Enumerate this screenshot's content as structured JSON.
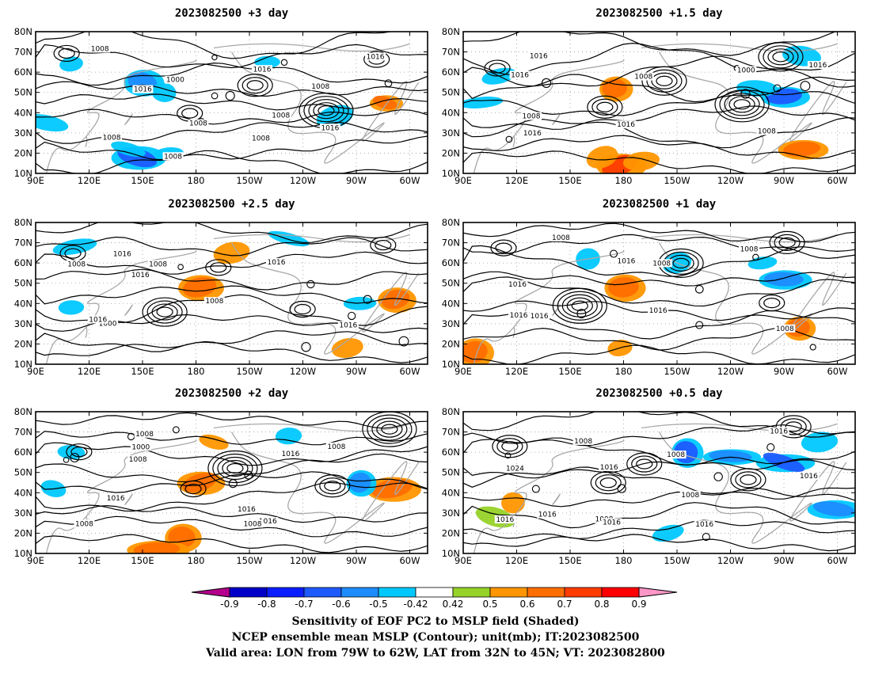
{
  "chart_data": [
    {
      "type": "heatmap",
      "title": "2023082500 +3 day",
      "x_ticks": [
        "90E",
        "120E",
        "150E",
        "180",
        "150W",
        "120W",
        "90W",
        "60W"
      ],
      "y_ticks": [
        "10N",
        "20N",
        "30N",
        "40N",
        "50N",
        "60N",
        "70N",
        "80N"
      ],
      "contour_labels": [
        "1008",
        "1008",
        "1016",
        "1008",
        "1016",
        "1008",
        "1000",
        "1016",
        "1016",
        "1008",
        "1008",
        "1008"
      ],
      "patches": [
        {
          "lon": 147,
          "lat": 18,
          "value": -0.7
        },
        {
          "lon": 142,
          "lat": 22,
          "value": -0.5
        },
        {
          "lon": 165,
          "lat": 20,
          "value": -0.45
        },
        {
          "lon": 150,
          "lat": 55,
          "value": -0.6
        },
        {
          "lon": 162,
          "lat": 50,
          "value": -0.5
        },
        {
          "lon": 110,
          "lat": 64,
          "value": -0.5
        },
        {
          "lon": 258,
          "lat": 38,
          "value": -0.45
        },
        {
          "lon": 220,
          "lat": 65,
          "value": -0.5
        },
        {
          "lon": 286,
          "lat": 45,
          "value": 0.6
        },
        {
          "lon": 96,
          "lat": 35,
          "value": -0.45
        }
      ]
    },
    {
      "type": "heatmap",
      "title": "2023082500 +1.5 day",
      "x_ticks": [
        "90E",
        "120E",
        "150E",
        "180",
        "150W",
        "120W",
        "90W",
        "60W"
      ],
      "y_ticks": [
        "10N",
        "20N",
        "30N",
        "40N",
        "50N",
        "60N",
        "70N",
        "80N"
      ],
      "contour_labels": [
        "1016",
        "1016",
        "1016",
        "1008",
        "1000",
        "1016",
        "1008",
        "1008",
        "1016"
      ],
      "patches": [
        {
          "lon": 178,
          "lat": 14,
          "value": 0.7
        },
        {
          "lon": 168,
          "lat": 18,
          "value": 0.55
        },
        {
          "lon": 190,
          "lat": 16,
          "value": 0.5
        },
        {
          "lon": 270,
          "lat": 48,
          "value": -0.7
        },
        {
          "lon": 255,
          "lat": 52,
          "value": -0.5
        },
        {
          "lon": 280,
          "lat": 22,
          "value": 0.6
        },
        {
          "lon": 110,
          "lat": 58,
          "value": -0.5
        },
        {
          "lon": 100,
          "lat": 45,
          "value": -0.5
        },
        {
          "lon": 175,
          "lat": 52,
          "value": 0.6
        },
        {
          "lon": 280,
          "lat": 68,
          "value": -0.5
        }
      ]
    },
    {
      "type": "heatmap",
      "title": "2023082500 +2.5 day",
      "x_ticks": [
        "90E",
        "120E",
        "150E",
        "180",
        "150W",
        "120W",
        "90W",
        "60W"
      ],
      "y_ticks": [
        "10N",
        "20N",
        "30N",
        "40N",
        "50N",
        "60N",
        "70N",
        "80N"
      ],
      "contour_labels": [
        "1016",
        "1008",
        "1008",
        "1000",
        "1016",
        "1016",
        "1008",
        "1016",
        "1016"
      ],
      "patches": [
        {
          "lon": 182,
          "lat": 48,
          "value": 0.6
        },
        {
          "lon": 292,
          "lat": 42,
          "value": 0.65
        },
        {
          "lon": 112,
          "lat": 68,
          "value": -0.5
        },
        {
          "lon": 232,
          "lat": 72,
          "value": -0.5
        },
        {
          "lon": 272,
          "lat": 40,
          "value": -0.5
        },
        {
          "lon": 110,
          "lat": 38,
          "value": -0.45
        },
        {
          "lon": 265,
          "lat": 18,
          "value": 0.5
        },
        {
          "lon": 200,
          "lat": 65,
          "value": 0.55
        }
      ]
    },
    {
      "type": "heatmap",
      "title": "2023082500 +1 day",
      "x_ticks": [
        "90E",
        "120E",
        "150E",
        "180",
        "150W",
        "120W",
        "90W",
        "60W"
      ],
      "y_ticks": [
        "10N",
        "20N",
        "30N",
        "40N",
        "50N",
        "60N",
        "70N",
        "80N"
      ],
      "contour_labels": [
        "1008",
        "1016",
        "1008",
        "1016",
        "1008",
        "1016",
        "1016",
        "1008",
        "1016"
      ],
      "patches": [
        {
          "lon": 180,
          "lat": 48,
          "value": 0.6
        },
        {
          "lon": 178,
          "lat": 18,
          "value": 0.55
        },
        {
          "lon": 96,
          "lat": 16,
          "value": 0.6
        },
        {
          "lon": 278,
          "lat": 28,
          "value": 0.6
        },
        {
          "lon": 160,
          "lat": 62,
          "value": -0.5
        },
        {
          "lon": 270,
          "lat": 52,
          "value": -0.6
        },
        {
          "lon": 258,
          "lat": 60,
          "value": -0.5
        },
        {
          "lon": 210,
          "lat": 60,
          "value": -0.5
        }
      ]
    },
    {
      "type": "heatmap",
      "title": "2023082500 +2 day",
      "x_ticks": [
        "90E",
        "120E",
        "150E",
        "180",
        "150W",
        "120W",
        "90W",
        "60W"
      ],
      "y_ticks": [
        "10N",
        "20N",
        "30N",
        "40N",
        "50N",
        "60N",
        "70N",
        "80N"
      ],
      "contour_labels": [
        "1008",
        "1016",
        "1008",
        "1016",
        "1016",
        "1008",
        "1000",
        "1016",
        "1008",
        "1008"
      ],
      "patches": [
        {
          "lon": 172,
          "lat": 18,
          "value": 0.6
        },
        {
          "lon": 158,
          "lat": 12,
          "value": 0.65
        },
        {
          "lon": 182,
          "lat": 45,
          "value": 0.65
        },
        {
          "lon": 190,
          "lat": 65,
          "value": 0.55
        },
        {
          "lon": 290,
          "lat": 42,
          "value": 0.6
        },
        {
          "lon": 110,
          "lat": 60,
          "value": -0.5
        },
        {
          "lon": 232,
          "lat": 68,
          "value": -0.5
        },
        {
          "lon": 272,
          "lat": 45,
          "value": -0.6
        },
        {
          "lon": 100,
          "lat": 42,
          "value": -0.5
        }
      ]
    },
    {
      "type": "heatmap",
      "title": "2023082500 +0.5 day",
      "x_ticks": [
        "90E",
        "120E",
        "150E",
        "180",
        "150W",
        "120W",
        "90W",
        "60W"
      ],
      "y_ticks": [
        "10N",
        "20N",
        "30N",
        "40N",
        "50N",
        "60N",
        "70N",
        "80N"
      ],
      "contour_labels": [
        "1008",
        "1008",
        "1016",
        "1016",
        "1008",
        "1016",
        "1016",
        "1016",
        "1024",
        "1008",
        "1016",
        "1016"
      ],
      "patches": [
        {
          "lon": 215,
          "lat": 60,
          "value": -0.7
        },
        {
          "lon": 240,
          "lat": 58,
          "value": -0.6
        },
        {
          "lon": 270,
          "lat": 55,
          "value": -0.7
        },
        {
          "lon": 290,
          "lat": 65,
          "value": -0.5
        },
        {
          "lon": 205,
          "lat": 20,
          "value": -0.5
        },
        {
          "lon": 298,
          "lat": 32,
          "value": -0.6
        },
        {
          "lon": 118,
          "lat": 35,
          "value": 0.5
        },
        {
          "lon": 108,
          "lat": 28,
          "value": 0.45
        }
      ]
    }
  ],
  "colorbar": {
    "labels": [
      "-0.9",
      "-0.8",
      "-0.7",
      "-0.6",
      "-0.5",
      "-0.42",
      "0.42",
      "0.5",
      "0.6",
      "0.7",
      "0.8",
      "0.9"
    ],
    "colors": [
      "#b4008c",
      "#0000c8",
      "#0a1eff",
      "#1e5aff",
      "#1e8cff",
      "#00c8ff",
      "#ffffff",
      "#96d228",
      "#ff9600",
      "#ff6e00",
      "#ff3c00",
      "#ff0000",
      "#ff96c8"
    ]
  },
  "caption": {
    "line1": "Sensitivity of EOF PC2 to MSLP field (Shaded)",
    "line2": "NCEP ensemble mean MSLP (Contour); unit(mb); IT:2023082500",
    "line3": "Valid area: LON from 79W to 62W, LAT from 32N to 45N; VT: 2023082800"
  }
}
